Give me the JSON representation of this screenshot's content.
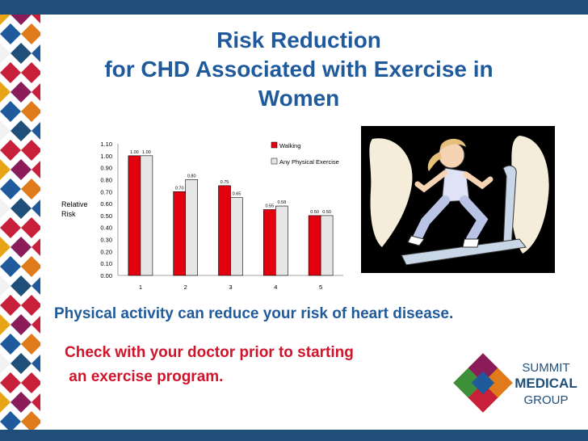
{
  "slide": {
    "title_line1": "Risk Reduction",
    "title_line2": "for CHD Associated with Exercise in",
    "title_line3": "Women",
    "message1": "Physical activity can reduce your risk of heart disease.",
    "message2_line1": "Check with your doctor prior to starting",
    "message2_line2": " an exercise program."
  },
  "logo": {
    "line1": "SUMMIT",
    "line2": "MEDICAL",
    "line3": "GROUP"
  },
  "colors": {
    "bar_walking": "#e3000f",
    "bar_any": "#e6e6e6",
    "title": "#1f5a9c",
    "accent_red": "#d0142c",
    "border_blue": "#1f4e79"
  },
  "clipart": {
    "icon": "woman-running-treadmill-icon"
  },
  "chart_data": {
    "type": "bar",
    "categories": [
      "1",
      "2",
      "3",
      "4",
      "5"
    ],
    "series": [
      {
        "name": "Walking",
        "values": [
          1.0,
          0.7,
          0.75,
          0.55,
          0.5
        ],
        "labels": [
          "1.00",
          "0.70",
          "0.75",
          "0.55",
          "0.50"
        ]
      },
      {
        "name": "Any Physical Exercise",
        "values": [
          1.0,
          0.8,
          0.65,
          0.58,
          0.5
        ],
        "labels": [
          "1.00",
          "0.80",
          "0.65",
          "0.58",
          "0.50"
        ]
      }
    ],
    "ylabel_line1": "Relative",
    "ylabel_line2": "Risk",
    "ylim": [
      0,
      1.1
    ],
    "yticks": [
      "0.00",
      "0.10",
      "0.20",
      "0.30",
      "0.40",
      "0.50",
      "0.60",
      "0.70",
      "0.80",
      "0.90",
      "1.00",
      "1.10"
    ],
    "legend_position": "top-right",
    "grid": false
  }
}
